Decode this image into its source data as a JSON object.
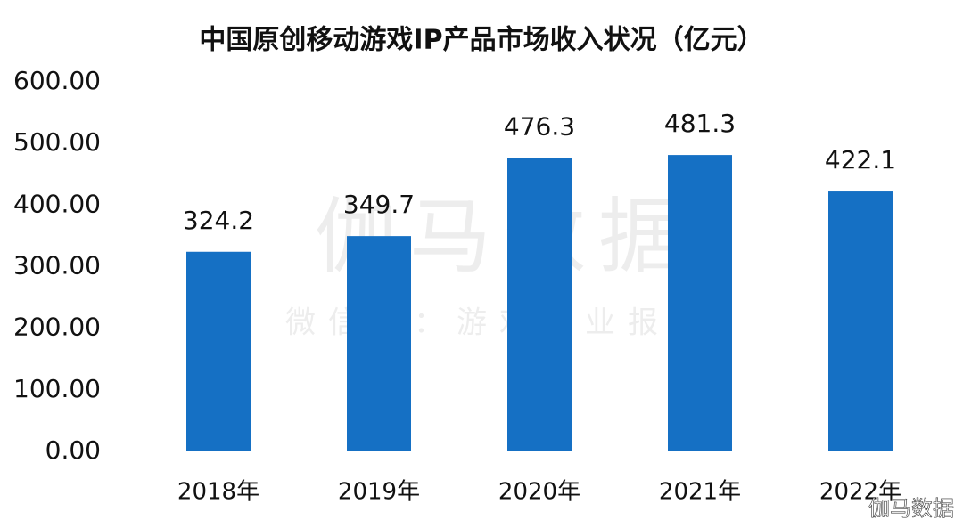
{
  "chart_data": {
    "type": "bar",
    "title": "中国原创移动游戏IP产品市场收入状况（亿元）",
    "categories": [
      "2018年",
      "2019年",
      "2020年",
      "2021年",
      "2022年"
    ],
    "values": [
      324.2,
      349.7,
      476.3,
      481.3,
      422.1
    ],
    "color": "#1570c4",
    "ylim": [
      0,
      600
    ],
    "yticks": [
      {
        "value": 0,
        "label": "0.00"
      },
      {
        "value": 100,
        "label": "100.00"
      },
      {
        "value": 200,
        "label": "200.00"
      },
      {
        "value": 300,
        "label": "300.00"
      },
      {
        "value": 400,
        "label": "400.00"
      },
      {
        "value": 500,
        "label": "500.00"
      },
      {
        "value": 600,
        "label": "600.00"
      }
    ],
    "grid": false,
    "watermark": "伽马数据",
    "watermark_subtitle": "微信号：游戏产业报告",
    "credit": "伽马数据"
  }
}
